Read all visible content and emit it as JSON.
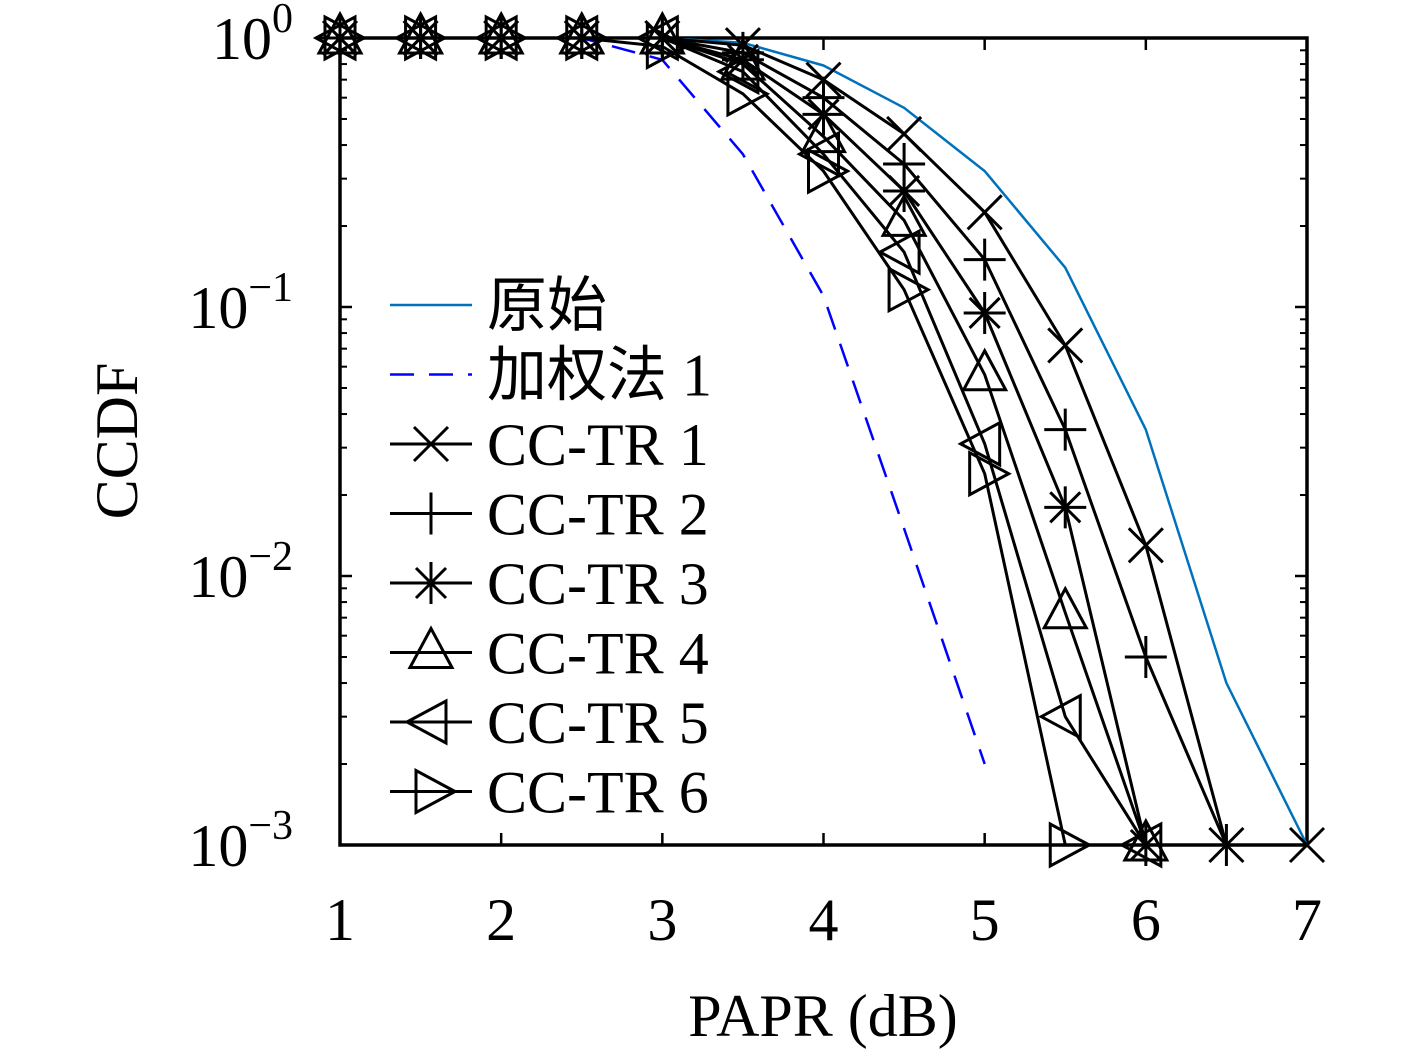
{
  "chart_data": {
    "type": "line",
    "xlabel": "PAPR (dB)",
    "ylabel": "CCDF",
    "xlim": [
      1,
      7
    ],
    "ylim": [
      0.001,
      1
    ],
    "yscale": "log",
    "grid": false,
    "legend_position": "top-left inside plot, no frame",
    "xticks": [
      {
        "value": 1,
        "label": "1"
      },
      {
        "value": 2,
        "label": "2"
      },
      {
        "value": 3,
        "label": "3"
      },
      {
        "value": 4,
        "label": "4"
      },
      {
        "value": 5,
        "label": "5"
      },
      {
        "value": 6,
        "label": "6"
      },
      {
        "value": 7,
        "label": "7"
      }
    ],
    "yticks": [
      {
        "value": 1,
        "base": "10",
        "exp": "0"
      },
      {
        "value": 0.1,
        "base": "10",
        "exp": "−1"
      },
      {
        "value": 0.01,
        "base": "10",
        "exp": "−2"
      },
      {
        "value": 0.001,
        "base": "10",
        "exp": "−3"
      }
    ],
    "series": [
      {
        "name": "原始",
        "color": "#0072BD",
        "line": "solid",
        "marker": "none",
        "x": [
          1,
          1.5,
          2,
          2.5,
          3,
          3.5,
          4,
          4.5,
          5,
          5.5,
          6,
          6.5,
          7
        ],
        "y": [
          1,
          1,
          1,
          1,
          1,
          0.96,
          0.79,
          0.55,
          0.32,
          0.14,
          0.035,
          0.004,
          0.001
        ]
      },
      {
        "name": "加权法 1",
        "color": "#0000FF",
        "line": "dashed",
        "marker": "none",
        "x": [
          1,
          1.5,
          2,
          2.5,
          3,
          3.5,
          4,
          4.5,
          5
        ],
        "y": [
          1,
          1,
          1,
          1,
          0.83,
          0.37,
          0.11,
          0.015,
          0.002
        ]
      },
      {
        "name": "CC-TR 1",
        "color": "#000000",
        "line": "solid",
        "marker": "x",
        "x": [
          1,
          1.5,
          2,
          2.5,
          3,
          3.5,
          4,
          4.5,
          5,
          5.5,
          6,
          6.5,
          7
        ],
        "y": [
          1,
          1,
          1,
          1,
          1,
          0.94,
          0.7,
          0.44,
          0.225,
          0.072,
          0.013,
          0.001,
          0.001
        ]
      },
      {
        "name": "CC-TR 2",
        "color": "#000000",
        "line": "solid",
        "marker": "+",
        "x": [
          1,
          1.5,
          2,
          2.5,
          3,
          3.5,
          4,
          4.5,
          5,
          5.5,
          6,
          6.5
        ],
        "y": [
          1,
          1,
          1,
          1,
          1,
          0.88,
          0.6,
          0.34,
          0.15,
          0.035,
          0.005,
          0.001
        ]
      },
      {
        "name": "CC-TR 3",
        "color": "#000000",
        "line": "solid",
        "marker": "*",
        "x": [
          1,
          1.5,
          2,
          2.5,
          3,
          3.5,
          4,
          4.5,
          5,
          5.5,
          6
        ],
        "y": [
          1,
          1,
          1,
          1,
          1,
          0.83,
          0.52,
          0.27,
          0.095,
          0.018,
          0.001
        ]
      },
      {
        "name": "CC-TR 4",
        "color": "#000000",
        "line": "solid",
        "marker": "triangle-up",
        "x": [
          1,
          1.5,
          2,
          2.5,
          3,
          3.5,
          4,
          4.5,
          5,
          5.5,
          6
        ],
        "y": [
          1,
          1,
          1,
          1,
          1,
          0.8,
          0.43,
          0.21,
          0.056,
          0.0073,
          0.001
        ]
      },
      {
        "name": "CC-TR 5",
        "color": "#000000",
        "line": "solid",
        "marker": "triangle-left",
        "x": [
          1,
          1.5,
          2,
          2.5,
          3,
          3.5,
          4,
          4.5,
          5,
          5.5,
          6
        ],
        "y": [
          1,
          1,
          1,
          1,
          1,
          0.75,
          0.37,
          0.16,
          0.031,
          0.003,
          0.001
        ]
      },
      {
        "name": "CC-TR 6",
        "color": "#000000",
        "line": "solid",
        "marker": "triangle-right",
        "x": [
          1,
          1.5,
          2,
          2.5,
          3,
          3.5,
          4,
          4.5,
          5,
          5.5
        ],
        "y": [
          1,
          1,
          1,
          1,
          0.93,
          0.62,
          0.32,
          0.116,
          0.024,
          0.001
        ]
      }
    ]
  }
}
